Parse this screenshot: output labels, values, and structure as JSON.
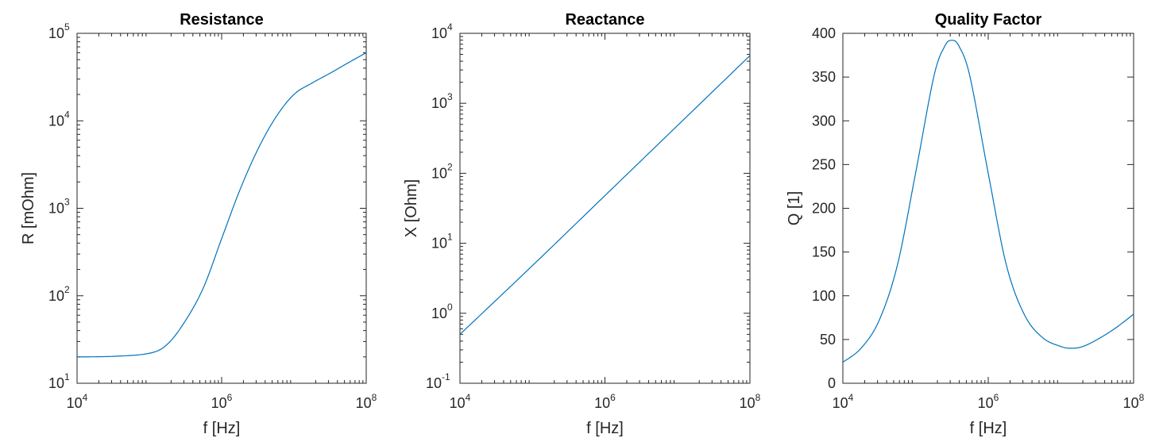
{
  "colors": {
    "line": "#0072bd",
    "axis": "#262626"
  },
  "chart_data": [
    {
      "type": "line",
      "title": "Resistance",
      "xlabel": "f [Hz]",
      "ylabel": "R [mOhm]",
      "xscale": "log",
      "yscale": "log",
      "xlim": [
        10000,
        100000000
      ],
      "ylim": [
        10,
        100000
      ],
      "x_ticks": [
        {
          "value": 10000,
          "base": "10",
          "exp": "4"
        },
        {
          "value": 1000000,
          "base": "10",
          "exp": "6"
        },
        {
          "value": 100000000,
          "base": "10",
          "exp": "8"
        }
      ],
      "y_ticks": [
        {
          "value": 10,
          "base": "10",
          "exp": "1"
        },
        {
          "value": 100,
          "base": "10",
          "exp": "2"
        },
        {
          "value": 1000,
          "base": "10",
          "exp": "3"
        },
        {
          "value": 10000,
          "base": "10",
          "exp": "4"
        },
        {
          "value": 100000,
          "base": "10",
          "exp": "5"
        }
      ],
      "grid": false,
      "series": [
        {
          "x": [
            10000,
            31623,
            100000,
            177828,
            316228,
            562341,
            1000000,
            1778279,
            3162278,
            5623413,
            10000000,
            17782794,
            31622777,
            56234133,
            100000000
          ],
          "y": [
            20,
            20.3,
            22,
            28,
            52,
            125,
            450,
            1600,
            4700,
            11000,
            20000,
            27000,
            35000,
            46000,
            60000
          ]
        }
      ]
    },
    {
      "type": "line",
      "title": "Reactance",
      "xlabel": "f [Hz]",
      "ylabel": "X [Ohm]",
      "xscale": "log",
      "yscale": "log",
      "xlim": [
        10000,
        100000000
      ],
      "ylim": [
        0.1,
        10000
      ],
      "x_ticks": [
        {
          "value": 10000,
          "base": "10",
          "exp": "4"
        },
        {
          "value": 1000000,
          "base": "10",
          "exp": "6"
        },
        {
          "value": 100000000,
          "base": "10",
          "exp": "8"
        }
      ],
      "y_ticks": [
        {
          "value": 0.1,
          "base": "10",
          "exp": "-1"
        },
        {
          "value": 1,
          "base": "10",
          "exp": "0"
        },
        {
          "value": 10,
          "base": "10",
          "exp": "1"
        },
        {
          "value": 100,
          "base": "10",
          "exp": "2"
        },
        {
          "value": 1000,
          "base": "10",
          "exp": "3"
        },
        {
          "value": 10000,
          "base": "10",
          "exp": "4"
        }
      ],
      "grid": false,
      "series": [
        {
          "x": [
            10000,
            100000,
            1000000,
            10000000,
            100000000
          ],
          "y": [
            0.5,
            4.8,
            48,
            480,
            4800
          ]
        }
      ]
    },
    {
      "type": "line",
      "title": "Quality Factor",
      "xlabel": "f [Hz]",
      "ylabel": "Q [1]",
      "xscale": "log",
      "yscale": "linear",
      "xlim": [
        10000,
        100000000
      ],
      "ylim": [
        0,
        400
      ],
      "x_ticks": [
        {
          "value": 10000,
          "base": "10",
          "exp": "4"
        },
        {
          "value": 1000000,
          "base": "10",
          "exp": "6"
        },
        {
          "value": 100000000,
          "base": "10",
          "exp": "8"
        }
      ],
      "y_ticks": [
        {
          "value": 0,
          "label": "0"
        },
        {
          "value": 50,
          "label": "50"
        },
        {
          "value": 100,
          "label": "100"
        },
        {
          "value": 150,
          "label": "150"
        },
        {
          "value": 200,
          "label": "200"
        },
        {
          "value": 250,
          "label": "250"
        },
        {
          "value": 300,
          "label": "300"
        },
        {
          "value": 350,
          "label": "350"
        },
        {
          "value": 400,
          "label": "400"
        }
      ],
      "grid": false,
      "series": [
        {
          "x": [
            10000,
            17783,
            31623,
            56234,
            100000,
            177828,
            251189,
            316228,
            398107,
            562341,
            1000000,
            1778279,
            3162278,
            5623413,
            10000000,
            14125375,
            20000000,
            31622777,
            56234133,
            100000000
          ],
          "y": [
            24,
            40,
            72,
            135,
            240,
            350,
            385,
            392,
            385,
            350,
            240,
            135,
            78,
            52,
            42,
            40,
            42,
            50,
            63,
            79
          ]
        }
      ]
    }
  ]
}
